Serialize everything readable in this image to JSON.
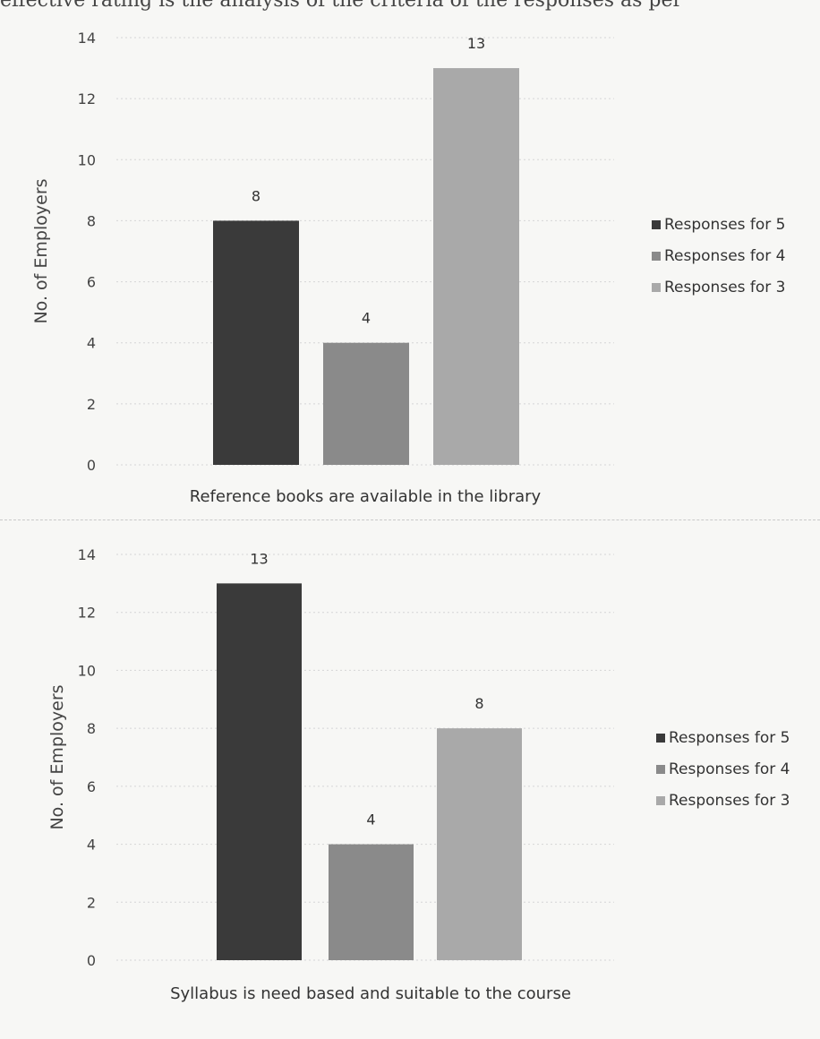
{
  "page": {
    "clipped_text": "effective rating is the analysis of the criteria of the responses as per"
  },
  "chart_data": [
    {
      "type": "bar",
      "xlabel": "Reference books are available in the library",
      "ylabel": "No. of Employers",
      "ylim": [
        0,
        14
      ],
      "yticks": [
        0,
        2,
        4,
        6,
        8,
        10,
        12,
        14
      ],
      "grid": true,
      "legend_position": "right",
      "series": [
        {
          "name": "Responses for 5",
          "value": 8,
          "color": "#3a3a3a"
        },
        {
          "name": "Responses for 4",
          "value": 4,
          "color": "#8a8a8a"
        },
        {
          "name": "Responses for 3",
          "value": 13,
          "color": "#a9a9a9"
        }
      ]
    },
    {
      "type": "bar",
      "xlabel": "Syllabus is need based and suitable to the course",
      "ylabel": "No. of Employers",
      "ylim": [
        0,
        14
      ],
      "yticks": [
        0,
        2,
        4,
        6,
        8,
        10,
        12,
        14
      ],
      "grid": true,
      "legend_position": "right",
      "series": [
        {
          "name": "Responses for 5",
          "value": 13,
          "color": "#3a3a3a"
        },
        {
          "name": "Responses for 4",
          "value": 4,
          "color": "#8a8a8a"
        },
        {
          "name": "Responses for 3",
          "value": 8,
          "color": "#a9a9a9"
        }
      ]
    }
  ]
}
